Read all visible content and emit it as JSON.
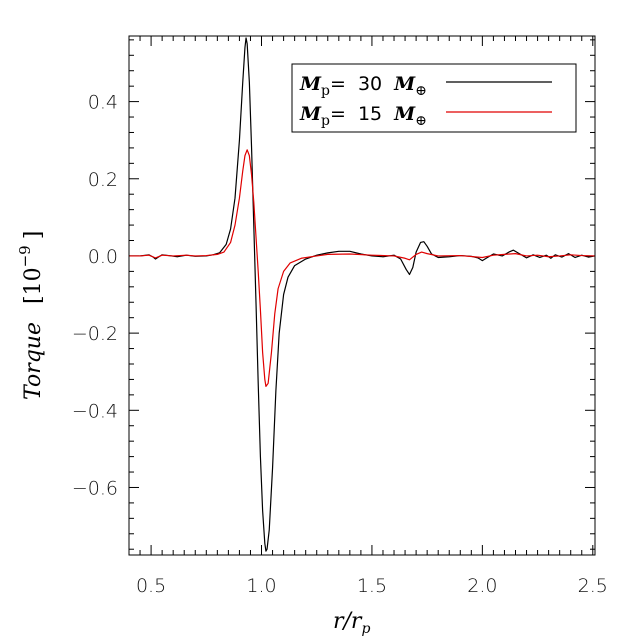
{
  "chart_data": {
    "type": "line",
    "xlabel": {
      "main": "r/r",
      "sub": "p"
    },
    "ylabel": {
      "main": "Torque",
      "unit": "[10",
      "exp": "−9",
      "close": "]"
    },
    "xlim": [
      0.4,
      2.51
    ],
    "ylim": [
      -0.775,
      0.57
    ],
    "x_ticks": [
      {
        "v": 0.5,
        "label": "0.5"
      },
      {
        "v": 1.0,
        "label": "1.0"
      },
      {
        "v": 1.5,
        "label": "1.5"
      },
      {
        "v": 2.0,
        "label": "2.0"
      },
      {
        "v": 2.5,
        "label": "2.5"
      }
    ],
    "y_ticks": [
      {
        "v": 0.4,
        "label": "0.4"
      },
      {
        "v": 0.2,
        "label": "0.2"
      },
      {
        "v": 0.0,
        "label": "0.0"
      },
      {
        "v": -0.2,
        "label": "−0.2"
      },
      {
        "v": -0.4,
        "label": "−0.4"
      },
      {
        "v": -0.6,
        "label": "−0.6"
      }
    ],
    "legend_position": "top-right",
    "series": [
      {
        "name": "M_p= 30 M_⊕",
        "legend": {
          "sym": "M",
          "sub": "p",
          "eq": "=",
          "num": "30",
          "sym2": "M",
          "sub2": "⊕"
        },
        "color": "#000000",
        "points": [
          [
            0.4,
            0.0
          ],
          [
            0.45,
            0.0
          ],
          [
            0.49,
            0.003
          ],
          [
            0.51,
            -0.003
          ],
          [
            0.52,
            -0.008
          ],
          [
            0.53,
            -0.004
          ],
          [
            0.55,
            0.003
          ],
          [
            0.58,
            0.001
          ],
          [
            0.62,
            -0.002
          ],
          [
            0.66,
            0.002
          ],
          [
            0.7,
            -0.001
          ],
          [
            0.75,
            0.0
          ],
          [
            0.78,
            0.003
          ],
          [
            0.81,
            0.008
          ],
          [
            0.84,
            0.03
          ],
          [
            0.86,
            0.07
          ],
          [
            0.88,
            0.15
          ],
          [
            0.9,
            0.3
          ],
          [
            0.915,
            0.45
          ],
          [
            0.925,
            0.54
          ],
          [
            0.93,
            0.565
          ],
          [
            0.935,
            0.55
          ],
          [
            0.945,
            0.45
          ],
          [
            0.955,
            0.28
          ],
          [
            0.965,
            0.08
          ],
          [
            0.975,
            -0.12
          ],
          [
            0.985,
            -0.33
          ],
          [
            0.995,
            -0.52
          ],
          [
            1.005,
            -0.66
          ],
          [
            1.015,
            -0.745
          ],
          [
            1.02,
            -0.765
          ],
          [
            1.025,
            -0.76
          ],
          [
            1.035,
            -0.71
          ],
          [
            1.05,
            -0.55
          ],
          [
            1.065,
            -0.35
          ],
          [
            1.08,
            -0.2
          ],
          [
            1.1,
            -0.1
          ],
          [
            1.12,
            -0.055
          ],
          [
            1.15,
            -0.025
          ],
          [
            1.2,
            -0.008
          ],
          [
            1.25,
            0.002
          ],
          [
            1.3,
            0.008
          ],
          [
            1.35,
            0.012
          ],
          [
            1.4,
            0.012
          ],
          [
            1.45,
            0.005
          ],
          [
            1.5,
            0.0
          ],
          [
            1.55,
            -0.002
          ],
          [
            1.6,
            0.002
          ],
          [
            1.63,
            -0.008
          ],
          [
            1.655,
            -0.035
          ],
          [
            1.67,
            -0.048
          ],
          [
            1.685,
            -0.03
          ],
          [
            1.7,
            0.01
          ],
          [
            1.72,
            0.035
          ],
          [
            1.735,
            0.037
          ],
          [
            1.75,
            0.025
          ],
          [
            1.77,
            0.005
          ],
          [
            1.8,
            -0.004
          ],
          [
            1.85,
            -0.002
          ],
          [
            1.9,
            0.001
          ],
          [
            1.95,
            -0.001
          ],
          [
            1.98,
            -0.005
          ],
          [
            2.0,
            -0.012
          ],
          [
            2.02,
            -0.005
          ],
          [
            2.05,
            0.005
          ],
          [
            2.09,
            0.0
          ],
          [
            2.12,
            0.01
          ],
          [
            2.14,
            0.015
          ],
          [
            2.17,
            0.005
          ],
          [
            2.2,
            -0.005
          ],
          [
            2.23,
            0.003
          ],
          [
            2.26,
            -0.004
          ],
          [
            2.29,
            0.002
          ],
          [
            2.31,
            -0.006
          ],
          [
            2.33,
            0.003
          ],
          [
            2.36,
            -0.003
          ],
          [
            2.39,
            0.006
          ],
          [
            2.42,
            -0.004
          ],
          [
            2.45,
            0.002
          ],
          [
            2.48,
            -0.003
          ],
          [
            2.51,
            0.0
          ]
        ]
      },
      {
        "name": "M_p= 15 M_⊕",
        "legend": {
          "sym": "M",
          "sub": "p",
          "eq": "=",
          "num": "15",
          "sym2": "M",
          "sub2": "⊕"
        },
        "color": "#e00000",
        "points": [
          [
            0.4,
            0.0
          ],
          [
            0.45,
            0.0
          ],
          [
            0.49,
            0.002
          ],
          [
            0.52,
            -0.005
          ],
          [
            0.55,
            0.002
          ],
          [
            0.6,
            0.0
          ],
          [
            0.66,
            0.002
          ],
          [
            0.7,
            0.0
          ],
          [
            0.75,
            0.001
          ],
          [
            0.8,
            0.004
          ],
          [
            0.83,
            0.01
          ],
          [
            0.86,
            0.035
          ],
          [
            0.88,
            0.08
          ],
          [
            0.9,
            0.15
          ],
          [
            0.915,
            0.22
          ],
          [
            0.925,
            0.26
          ],
          [
            0.935,
            0.275
          ],
          [
            0.945,
            0.26
          ],
          [
            0.955,
            0.21
          ],
          [
            0.965,
            0.14
          ],
          [
            0.975,
            0.05
          ],
          [
            0.985,
            -0.04
          ],
          [
            0.995,
            -0.14
          ],
          [
            1.005,
            -0.25
          ],
          [
            1.015,
            -0.32
          ],
          [
            1.02,
            -0.338
          ],
          [
            1.03,
            -0.33
          ],
          [
            1.045,
            -0.25
          ],
          [
            1.06,
            -0.15
          ],
          [
            1.075,
            -0.085
          ],
          [
            1.1,
            -0.04
          ],
          [
            1.13,
            -0.018
          ],
          [
            1.18,
            -0.006
          ],
          [
            1.25,
            0.0
          ],
          [
            1.3,
            0.004
          ],
          [
            1.4,
            0.005
          ],
          [
            1.5,
            0.002
          ],
          [
            1.6,
            0.0
          ],
          [
            1.65,
            -0.006
          ],
          [
            1.67,
            -0.01
          ],
          [
            1.7,
            0.004
          ],
          [
            1.725,
            0.01
          ],
          [
            1.75,
            0.006
          ],
          [
            1.8,
            0.0
          ],
          [
            1.9,
            0.001
          ],
          [
            2.0,
            -0.004
          ],
          [
            2.05,
            0.002
          ],
          [
            2.1,
            0.004
          ],
          [
            2.15,
            0.006
          ],
          [
            2.2,
            0.0
          ],
          [
            2.25,
            0.002
          ],
          [
            2.3,
            -0.002
          ],
          [
            2.35,
            0.0
          ],
          [
            2.4,
            0.003
          ],
          [
            2.45,
            0.001
          ],
          [
            2.51,
            0.0
          ]
        ]
      }
    ]
  }
}
